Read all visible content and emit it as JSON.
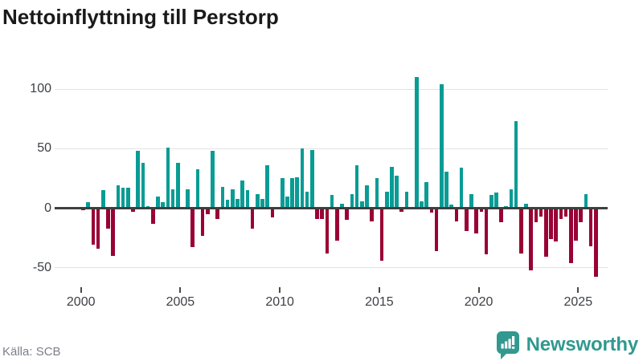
{
  "title": "Nettoinflyttning till Perstorp",
  "source": "Källa: SCB",
  "logo": {
    "text": "Newsworthy",
    "icon": "newsworthy-speech-bubble-bar-chart-icon"
  },
  "colors": {
    "positive_bar": "#089c95",
    "negative_bar": "#990235",
    "grid": "#e3e3e3",
    "zero_line": "#3f3f3f",
    "axis_text": "#3d4045",
    "title_text": "#1a1a1a",
    "source_text": "#7b7f88",
    "logo_teal": "#31998f",
    "background": "#ffffff"
  },
  "chart_data": {
    "type": "bar",
    "title": "Nettoinflyttning till Perstorp",
    "frequency": "quarterly",
    "x_start": "2000Q1",
    "x_end": "2025Q4",
    "xlabel": "",
    "ylabel": "",
    "ylim": [
      -75,
      125
    ],
    "grid": "horizontal",
    "legend": "none",
    "y_ticks": [
      {
        "value": 100,
        "label": "100"
      },
      {
        "value": 50,
        "label": "50"
      },
      {
        "value": 0,
        "label": "0"
      },
      {
        "value": -50,
        "label": "-50"
      }
    ],
    "x_tick_labels": [
      "2000",
      "2005",
      "2010",
      "2015",
      "2020",
      "2025"
    ],
    "quarterly_values_by_year": [
      {
        "year": 2000,
        "q": [
          -2,
          5,
          -31,
          -34
        ]
      },
      {
        "year": 2001,
        "q": [
          15,
          -17,
          -40,
          19
        ]
      },
      {
        "year": 2002,
        "q": [
          17,
          17,
          -3,
          48
        ]
      },
      {
        "year": 2003,
        "q": [
          38,
          2,
          -13,
          10
        ]
      },
      {
        "year": 2004,
        "q": [
          5,
          51,
          16,
          38
        ]
      },
      {
        "year": 2005,
        "q": [
          1,
          16,
          -33,
          33
        ]
      },
      {
        "year": 2006,
        "q": [
          -23,
          -5,
          48,
          -9
        ]
      },
      {
        "year": 2007,
        "q": [
          18,
          7,
          16,
          8
        ]
      },
      {
        "year": 2008,
        "q": [
          23,
          15,
          -17,
          12
        ]
      },
      {
        "year": 2009,
        "q": [
          8,
          36,
          -8,
          0
        ]
      },
      {
        "year": 2010,
        "q": [
          25,
          10,
          25,
          26
        ]
      },
      {
        "year": 2011,
        "q": [
          50,
          14,
          49,
          -9
        ]
      },
      {
        "year": 2012,
        "q": [
          -9,
          -38,
          11,
          -27
        ]
      },
      {
        "year": 2013,
        "q": [
          4,
          -10,
          12,
          36
        ]
      },
      {
        "year": 2014,
        "q": [
          6,
          19,
          -11,
          25
        ]
      },
      {
        "year": 2015,
        "q": [
          -44,
          14,
          35,
          27
        ]
      },
      {
        "year": 2016,
        "q": [
          -3,
          14,
          0,
          110
        ]
      },
      {
        "year": 2017,
        "q": [
          6,
          22,
          -4,
          -36
        ]
      },
      {
        "year": 2018,
        "q": [
          104,
          31,
          3,
          -11
        ]
      },
      {
        "year": 2019,
        "q": [
          34,
          -19,
          12,
          -21
        ]
      },
      {
        "year": 2020,
        "q": [
          -3,
          -39,
          11,
          13
        ]
      },
      {
        "year": 2021,
        "q": [
          -12,
          2,
          16,
          73
        ]
      },
      {
        "year": 2022,
        "q": [
          -38,
          4,
          -52,
          -12
        ]
      },
      {
        "year": 2023,
        "q": [
          -7,
          -41,
          -26,
          -28
        ]
      },
      {
        "year": 2024,
        "q": [
          -9,
          -7,
          -46,
          -27
        ]
      },
      {
        "year": 2025,
        "q": [
          -12,
          12,
          -32,
          -58
        ]
      }
    ]
  }
}
